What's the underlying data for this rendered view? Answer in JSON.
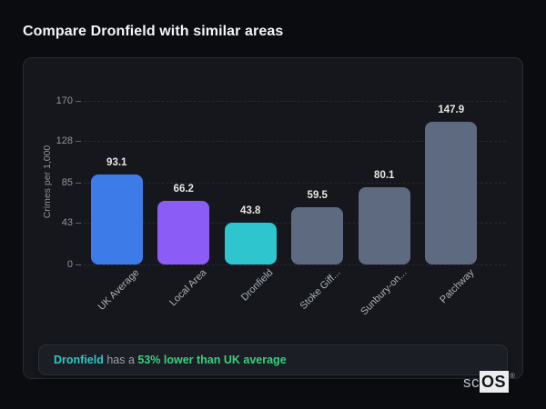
{
  "page": {
    "title": "Compare Dronfield with similar areas"
  },
  "chart_data": {
    "type": "bar",
    "categories": [
      "UK Average",
      "Local Area",
      "Dronfield",
      "Stoke Giff...",
      "Sunbury-on...",
      "Patchway"
    ],
    "values": [
      93.1,
      66.2,
      43.8,
      59.5,
      80.1,
      147.9
    ],
    "value_labels": [
      "93.1",
      "66.2",
      "43.8",
      "59.5",
      "80.1",
      "147.9"
    ],
    "bar_colors": [
      "#3d7ce8",
      "#8b5cf6",
      "#2ec5cf",
      "#5d6a7f",
      "#5d6a7f",
      "#5d6a7f"
    ],
    "title": "",
    "xlabel": "",
    "ylabel": "Crimes per 1,000",
    "yticks": [
      "0",
      "43",
      "85",
      "128",
      "170"
    ],
    "ytick_values": [
      0,
      43,
      85,
      128,
      170
    ],
    "ylim": [
      0,
      170
    ],
    "grid": "horizontal-dashed",
    "legend": "none"
  },
  "summary": {
    "area": "Dronfield",
    "connector": " has a ",
    "highlight": "53% lower than UK average",
    "area_color": "#2bc8c6",
    "highlight_color": "#35d27d"
  },
  "logo": {
    "prefix": "sc",
    "suffix": "OS",
    "registered": "®"
  }
}
